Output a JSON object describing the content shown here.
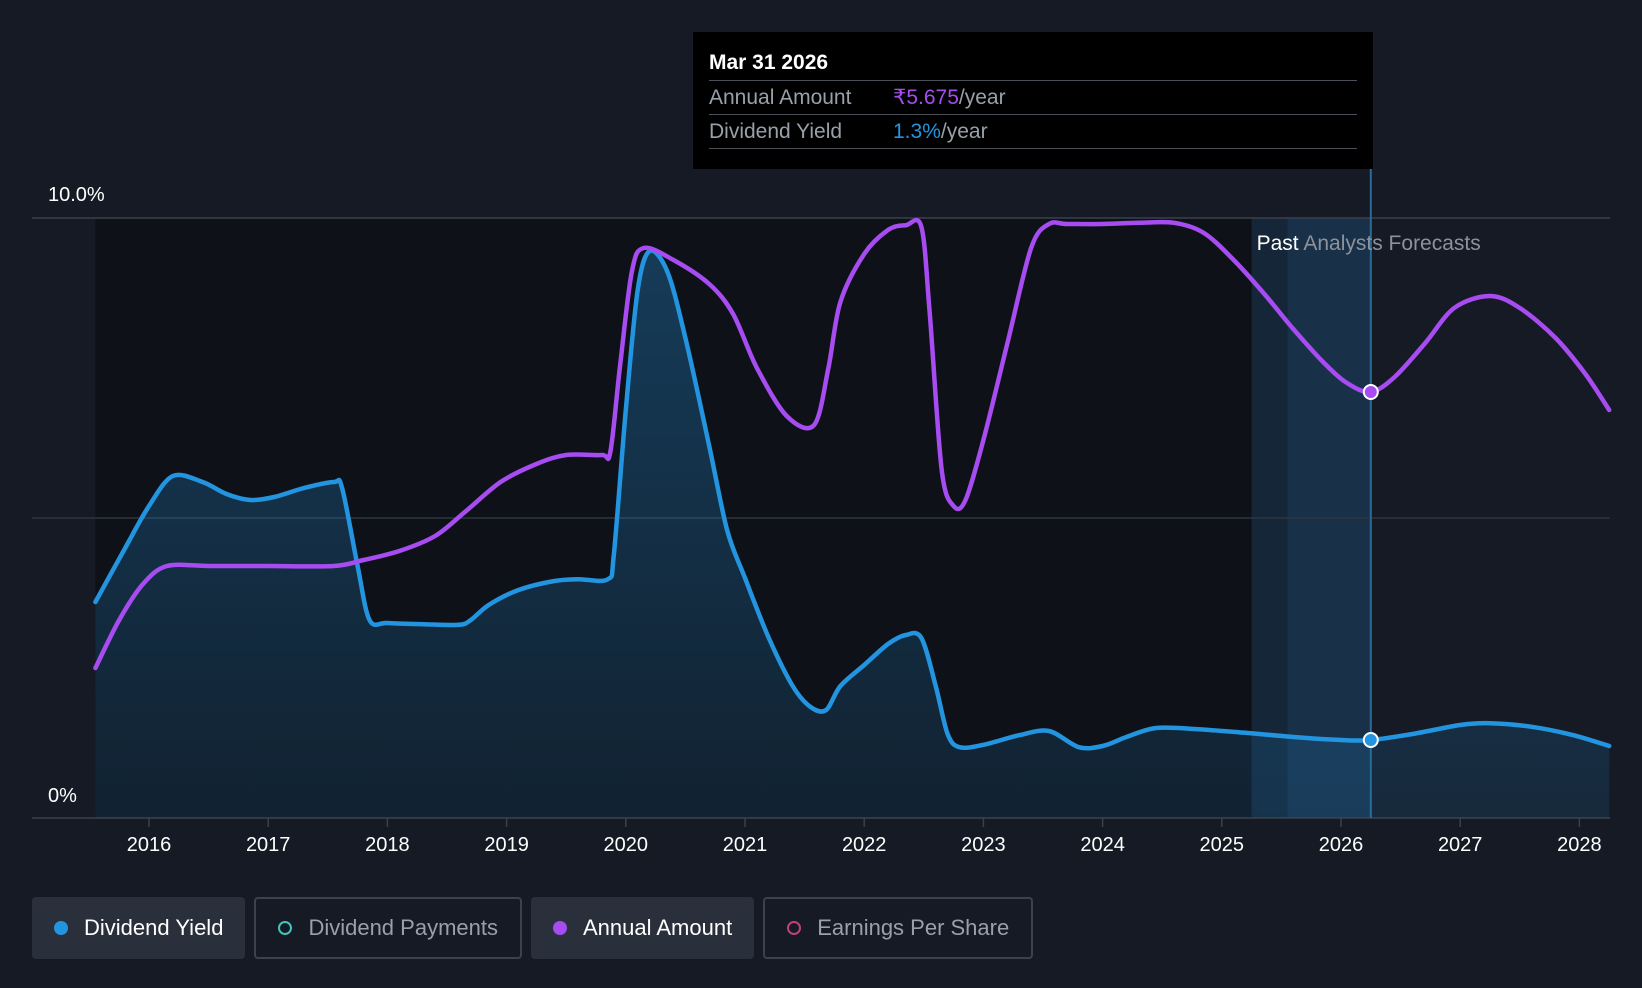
{
  "chart_data": {
    "type": "line",
    "y_axis": {
      "top_label": "10.0%",
      "bottom_label": "0%",
      "ylim": [
        0,
        10
      ]
    },
    "x_axis": {
      "ticks": [
        "2016",
        "2017",
        "2018",
        "2019",
        "2020",
        "2021",
        "2022",
        "2023",
        "2024",
        "2025",
        "2026",
        "2027",
        "2028"
      ],
      "xlim": [
        2015.55,
        2028.25
      ]
    },
    "regions": {
      "past_label": "Past",
      "forecast_label": "Analysts Forecasts",
      "past_end": 2025.25,
      "forecast_start": 2025.55,
      "cursor": 2026.25
    },
    "series": [
      {
        "name": "Dividend Yield",
        "color": "#2394df",
        "area": true,
        "points": [
          [
            2015.55,
            3.6
          ],
          [
            2015.8,
            4.5
          ],
          [
            2016.0,
            5.2
          ],
          [
            2016.2,
            5.7
          ],
          [
            2016.45,
            5.6
          ],
          [
            2016.65,
            5.4
          ],
          [
            2016.85,
            5.3
          ],
          [
            2017.05,
            5.35
          ],
          [
            2017.3,
            5.5
          ],
          [
            2017.55,
            5.6
          ],
          [
            2017.62,
            5.5
          ],
          [
            2017.75,
            4.2
          ],
          [
            2017.85,
            3.3
          ],
          [
            2018.0,
            3.25
          ],
          [
            2018.3,
            3.23
          ],
          [
            2018.6,
            3.22
          ],
          [
            2018.7,
            3.3
          ],
          [
            2018.85,
            3.55
          ],
          [
            2019.1,
            3.8
          ],
          [
            2019.4,
            3.95
          ],
          [
            2019.6,
            3.98
          ],
          [
            2019.85,
            3.98
          ],
          [
            2019.9,
            4.4
          ],
          [
            2020.0,
            6.8
          ],
          [
            2020.1,
            8.8
          ],
          [
            2020.2,
            9.45
          ],
          [
            2020.35,
            9.1
          ],
          [
            2020.5,
            8.0
          ],
          [
            2020.7,
            6.2
          ],
          [
            2020.85,
            4.8
          ],
          [
            2021.0,
            4.0
          ],
          [
            2021.2,
            3.0
          ],
          [
            2021.4,
            2.2
          ],
          [
            2021.55,
            1.85
          ],
          [
            2021.68,
            1.8
          ],
          [
            2021.8,
            2.2
          ],
          [
            2022.0,
            2.55
          ],
          [
            2022.2,
            2.9
          ],
          [
            2022.35,
            3.05
          ],
          [
            2022.48,
            3.0
          ],
          [
            2022.6,
            2.2
          ],
          [
            2022.7,
            1.4
          ],
          [
            2022.8,
            1.18
          ],
          [
            2023.0,
            1.22
          ],
          [
            2023.3,
            1.38
          ],
          [
            2023.55,
            1.45
          ],
          [
            2023.8,
            1.18
          ],
          [
            2024.0,
            1.2
          ],
          [
            2024.2,
            1.35
          ],
          [
            2024.45,
            1.5
          ],
          [
            2024.8,
            1.48
          ],
          [
            2025.2,
            1.42
          ],
          [
            2025.6,
            1.35
          ],
          [
            2026.0,
            1.3
          ],
          [
            2026.25,
            1.3
          ],
          [
            2026.6,
            1.4
          ],
          [
            2027.0,
            1.55
          ],
          [
            2027.25,
            1.58
          ],
          [
            2027.6,
            1.52
          ],
          [
            2027.95,
            1.38
          ],
          [
            2028.25,
            1.2
          ]
        ]
      },
      {
        "name": "Annual Amount",
        "color": "#a64cf0",
        "area": false,
        "points": [
          [
            2015.55,
            2.5
          ],
          [
            2015.75,
            3.3
          ],
          [
            2015.95,
            3.9
          ],
          [
            2016.15,
            4.2
          ],
          [
            2016.5,
            4.2
          ],
          [
            2017.0,
            4.2
          ],
          [
            2017.55,
            4.2
          ],
          [
            2017.8,
            4.3
          ],
          [
            2018.1,
            4.45
          ],
          [
            2018.4,
            4.7
          ],
          [
            2018.65,
            5.1
          ],
          [
            2018.95,
            5.6
          ],
          [
            2019.25,
            5.9
          ],
          [
            2019.5,
            6.05
          ],
          [
            2019.8,
            6.05
          ],
          [
            2019.87,
            6.1
          ],
          [
            2019.95,
            7.5
          ],
          [
            2020.05,
            9.1
          ],
          [
            2020.15,
            9.5
          ],
          [
            2020.4,
            9.3
          ],
          [
            2020.7,
            8.9
          ],
          [
            2020.9,
            8.4
          ],
          [
            2021.1,
            7.5
          ],
          [
            2021.35,
            6.7
          ],
          [
            2021.58,
            6.55
          ],
          [
            2021.7,
            7.5
          ],
          [
            2021.8,
            8.6
          ],
          [
            2022.0,
            9.4
          ],
          [
            2022.2,
            9.8
          ],
          [
            2022.35,
            9.88
          ],
          [
            2022.48,
            9.85
          ],
          [
            2022.55,
            8.4
          ],
          [
            2022.65,
            5.8
          ],
          [
            2022.75,
            5.2
          ],
          [
            2022.85,
            5.3
          ],
          [
            2023.0,
            6.3
          ],
          [
            2023.2,
            7.9
          ],
          [
            2023.4,
            9.5
          ],
          [
            2023.55,
            9.9
          ],
          [
            2023.7,
            9.9
          ],
          [
            2024.0,
            9.9
          ],
          [
            2024.3,
            9.92
          ],
          [
            2024.6,
            9.92
          ],
          [
            2024.85,
            9.75
          ],
          [
            2025.1,
            9.3
          ],
          [
            2025.35,
            8.75
          ],
          [
            2025.6,
            8.15
          ],
          [
            2025.85,
            7.6
          ],
          [
            2026.05,
            7.25
          ],
          [
            2026.25,
            7.1
          ],
          [
            2026.45,
            7.35
          ],
          [
            2026.7,
            7.9
          ],
          [
            2026.95,
            8.5
          ],
          [
            2027.25,
            8.7
          ],
          [
            2027.5,
            8.5
          ],
          [
            2027.8,
            8.0
          ],
          [
            2028.05,
            7.4
          ],
          [
            2028.25,
            6.8
          ]
        ]
      }
    ]
  },
  "tooltip": {
    "date": "Mar 31 2026",
    "rows": [
      {
        "label": "Annual Amount",
        "value": "₹5.675",
        "unit": "/year",
        "color": "#a64cf0"
      },
      {
        "label": "Dividend Yield",
        "value": "1.3%",
        "unit": "/year",
        "color": "#2394df"
      }
    ]
  },
  "legend": [
    {
      "label": "Dividend Yield",
      "active": true,
      "dot_color": "#2394df",
      "dot_filled": true
    },
    {
      "label": "Dividend Payments",
      "active": false,
      "dot_color": "#3fc7b8",
      "dot_filled": false
    },
    {
      "label": "Annual Amount",
      "active": true,
      "dot_color": "#a64cf0",
      "dot_filled": true
    },
    {
      "label": "Earnings Per Share",
      "active": false,
      "dot_color": "#c0407a",
      "dot_filled": false
    }
  ]
}
